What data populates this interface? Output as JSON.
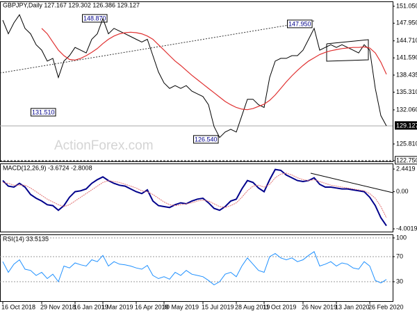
{
  "chart_data": [
    {
      "type": "line",
      "title": "GBPJPY,Daily  127.167 129.302 126.386 129.127",
      "watermark": "ActionForex.com",
      "ylim": [
        122.75,
        151.05
      ],
      "yticks": [
        {
          "value": 151.05,
          "label": "151.050"
        },
        {
          "value": 147.95,
          "label": "147.950"
        },
        {
          "value": 144.71,
          "label": "144.710"
        },
        {
          "value": 141.59,
          "label": "141.590"
        },
        {
          "value": 138.435,
          "label": "138.435"
        },
        {
          "value": 135.31,
          "label": "135.310"
        },
        {
          "value": 132.06,
          "label": "132.060"
        },
        {
          "value": 125.81,
          "label": "125.810"
        },
        {
          "value": 122.75,
          "label": "122.750"
        }
      ],
      "last_price": {
        "value": 129.127,
        "label": "129.127"
      },
      "annotations": [
        "148.870",
        "147.950",
        "131.510",
        "126.540"
      ],
      "series": [
        {
          "name": "GBPJPY",
          "color": "#000000",
          "values": [
            148.5,
            146,
            148,
            149.5,
            147,
            146,
            144,
            143,
            141,
            141.5,
            138,
            141,
            142,
            143.5,
            143,
            142.5,
            145,
            146,
            148.8,
            146,
            147,
            146.5,
            146,
            145.5,
            145,
            144.5,
            145,
            142,
            139,
            137,
            136,
            136.5,
            136,
            136.5,
            135.5,
            135,
            134.5,
            133,
            129,
            127,
            128,
            128.5,
            128,
            131,
            134,
            134,
            133,
            132.5,
            138,
            141,
            141.5,
            141.5,
            142,
            142,
            143,
            145,
            147,
            143,
            143.5,
            144,
            143.5,
            144,
            143.5,
            143,
            142.5,
            144,
            143,
            136,
            131,
            129.127
          ]
        },
        {
          "name": "SMA",
          "color": "#e03030",
          "values": [
            null,
            null,
            null,
            null,
            null,
            null,
            null,
            147,
            146,
            144.5,
            143,
            142,
            141.3,
            141.2,
            141.5,
            142,
            142.6,
            143.3,
            144.2,
            145,
            145.6,
            146,
            146.2,
            146.3,
            146.2,
            146,
            145.6,
            145,
            144,
            143,
            142,
            141,
            140.2,
            139.3,
            138.4,
            137.6,
            136.8,
            136,
            135.2,
            134.4,
            133.6,
            133,
            132.5,
            132.2,
            132.1,
            132.3,
            132.7,
            133.1,
            133.8,
            134.8,
            136,
            137.2,
            138.3,
            139.3,
            140.2,
            141,
            141.6,
            142.2,
            142.6,
            142.9,
            143.1,
            143.3,
            143.4,
            143.5,
            143.5,
            143.6,
            143.4,
            142.5,
            140.8,
            138.6
          ]
        }
      ]
    },
    {
      "type": "line",
      "title": "MACD(12,26,9) -3.6724 -2.8008",
      "ylim": [
        -4.3,
        2.97
      ],
      "yticks": [
        2.4419,
        {
          "value": 0,
          "label": "0.00"
        },
        -4.0019
      ],
      "series": [
        {
          "name": "MACD",
          "color": "#00008b",
          "values": [
            1.2,
            0.6,
            0.5,
            0.9,
            0.5,
            -0.3,
            -0.7,
            -1.0,
            -1.4,
            -1.5,
            -2.0,
            -1.5,
            -0.6,
            0.0,
            0.1,
            0.3,
            0.9,
            1.3,
            1.6,
            1.2,
            0.9,
            0.7,
            0.6,
            0.3,
            0.0,
            -0.2,
            0.2,
            -1.0,
            -1.5,
            -1.6,
            -1.7,
            -1.4,
            -1.2,
            -1.3,
            -1.0,
            -0.8,
            -0.7,
            -1.2,
            -1.8,
            -2.0,
            -1.6,
            -1.0,
            -0.8,
            0.3,
            1.2,
            1.0,
            0.4,
            0.0,
            1.3,
            2.4,
            2.3,
            1.8,
            1.5,
            1.2,
            1.1,
            1.2,
            1.5,
            0.8,
            0.5,
            0.5,
            0.4,
            0.3,
            0.3,
            0.2,
            0.1,
            0.0,
            -0.6,
            -1.5,
            -2.8,
            -3.6724
          ]
        },
        {
          "name": "Signal",
          "color": "#e07070",
          "values": [
            1.0,
            0.9,
            0.7,
            0.7,
            0.7,
            0.4,
            0.0,
            -0.4,
            -0.8,
            -1.1,
            -1.4,
            -1.6,
            -1.4,
            -1.0,
            -0.6,
            -0.2,
            0.2,
            0.6,
            1.0,
            1.2,
            1.1,
            1.0,
            0.8,
            0.6,
            0.4,
            0.1,
            0.0,
            -0.3,
            -0.7,
            -1.1,
            -1.4,
            -1.5,
            -1.4,
            -1.3,
            -1.2,
            -1.0,
            -0.9,
            -1.0,
            -1.3,
            -1.6,
            -1.7,
            -1.5,
            -1.2,
            -0.6,
            0.1,
            0.6,
            0.7,
            0.5,
            0.8,
            1.5,
            1.9,
            2.0,
            1.8,
            1.5,
            1.3,
            1.2,
            1.3,
            1.1,
            0.9,
            0.7,
            0.6,
            0.5,
            0.4,
            0.3,
            0.2,
            0.1,
            -0.2,
            -0.7,
            -1.6,
            -2.8008
          ]
        }
      ]
    },
    {
      "type": "line",
      "title": "RSI(14) 33.5135",
      "ylim": [
        0,
        100
      ],
      "yticks": [
        100,
        70,
        30
      ],
      "grid": true,
      "categories": [
        "16 Oct 2018",
        null,
        null,
        null,
        null,
        null,
        null,
        "29 Nov 2018",
        null,
        null,
        null,
        null,
        null,
        "16 Jan 2019",
        null,
        null,
        null,
        null,
        "1 Mar 2019",
        null,
        null,
        null,
        null,
        null,
        "16 Apr 2019",
        null,
        null,
        null,
        null,
        "30 May 2019",
        null,
        null,
        null,
        null,
        null,
        null,
        "15 Jul 2019",
        null,
        null,
        null,
        null,
        null,
        "28 Aug 2019",
        null,
        null,
        null,
        null,
        "11 Oct 2019",
        null,
        null,
        null,
        null,
        null,
        null,
        "26 Nov 2019",
        null,
        null,
        null,
        null,
        null,
        "13 Jan 2020",
        null,
        null,
        null,
        null,
        null,
        "26 Feb 2020",
        null,
        null,
        null
      ],
      "series": [
        {
          "name": "RSI",
          "color": "#1e90ff",
          "values": [
            62,
            45,
            58,
            65,
            50,
            48,
            40,
            45,
            35,
            42,
            30,
            55,
            52,
            60,
            57,
            55,
            65,
            62,
            72,
            55,
            62,
            58,
            57,
            55,
            52,
            50,
            56,
            40,
            35,
            38,
            34,
            45,
            40,
            48,
            42,
            40,
            38,
            32,
            25,
            30,
            42,
            45,
            38,
            55,
            68,
            58,
            48,
            45,
            70,
            75,
            68,
            65,
            68,
            62,
            65,
            72,
            78,
            55,
            58,
            62,
            55,
            60,
            58,
            52,
            50,
            62,
            55,
            32,
            28,
            33.5135
          ]
        }
      ]
    }
  ]
}
